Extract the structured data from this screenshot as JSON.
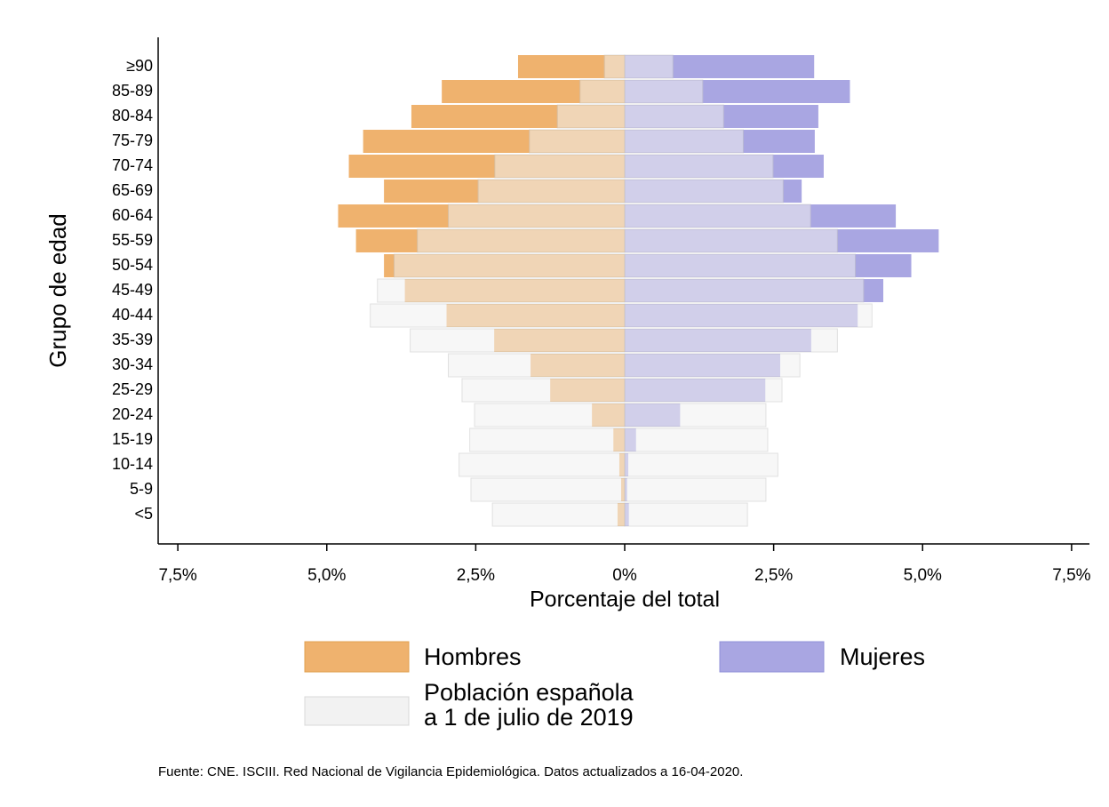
{
  "chart_data": {
    "type": "pyramid",
    "xlabel": "Porcentaje del total",
    "ylabel": "Grupo de edad",
    "source": "Fuente: CNE. ISCIII. Red Nacional de Vigilancia Epidemiológica. Datos actualizados a 16-04-2020.",
    "categories": [
      "≥90",
      "85-89",
      "80-84",
      "75-79",
      "70-74",
      "65-69",
      "60-64",
      "55-59",
      "50-54",
      "45-49",
      "40-44",
      "35-39",
      "30-34",
      "25-29",
      "20-24",
      "15-19",
      "10-14",
      "5-9",
      "<5"
    ],
    "series": [
      {
        "name": "Hombres",
        "color": "#efb26e",
        "values": [
          -1.79,
          -3.07,
          -3.58,
          -4.39,
          -4.63,
          -4.04,
          -4.81,
          -4.51,
          -4.04,
          -3.69,
          -2.99,
          -2.19,
          -1.58,
          -1.25,
          -0.55,
          -0.19,
          -0.09,
          -0.06,
          -0.12
        ]
      },
      {
        "name": "Mujeres",
        "color": "#a9a6e2",
        "values": [
          3.18,
          3.78,
          3.25,
          3.19,
          3.34,
          2.97,
          4.55,
          5.27,
          4.81,
          4.34,
          3.91,
          3.13,
          2.61,
          2.36,
          0.93,
          0.19,
          0.06,
          0.04,
          0.07
        ]
      }
    ],
    "population": {
      "name": [
        "Población española",
        "a 1 de julio de 2019"
      ],
      "color": "#f2f2f2",
      "male": [
        -0.34,
        -0.75,
        -1.13,
        -1.6,
        -2.18,
        -2.46,
        -2.96,
        -3.48,
        -3.87,
        -4.15,
        -4.27,
        -3.6,
        -2.96,
        -2.73,
        -2.52,
        -2.6,
        -2.78,
        -2.58,
        -2.22
      ],
      "female": [
        0.81,
        1.31,
        1.66,
        1.99,
        2.49,
        2.66,
        3.12,
        3.57,
        3.87,
        4.01,
        4.15,
        3.57,
        2.94,
        2.64,
        2.37,
        2.4,
        2.57,
        2.37,
        2.06
      ]
    },
    "xlim": [
      -7.8,
      7.8
    ],
    "xticks": [
      {
        "value": -7.5,
        "label": "7,5%"
      },
      {
        "value": -5,
        "label": "5,0%"
      },
      {
        "value": -2.5,
        "label": "2,5%"
      },
      {
        "value": 0,
        "label": "0%"
      },
      {
        "value": 2.5,
        "label": "2,5%"
      },
      {
        "value": 5,
        "label": "5,0%"
      },
      {
        "value": 7.5,
        "label": "7,5%"
      }
    ]
  }
}
